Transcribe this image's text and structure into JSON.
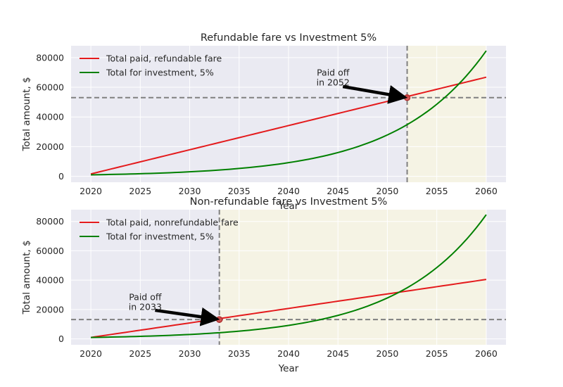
{
  "figure": {
    "colors": {
      "plot_bg": "#eaeaf2",
      "grid": "#ffffff",
      "shade": "#f5f3e4",
      "series_paid": "#e41a1c",
      "series_invest": "#008000",
      "hline": "#808080",
      "marker": "#d84a4a"
    }
  },
  "chart_data": [
    {
      "type": "line",
      "title": "Refundable fare vs Investment 5%",
      "xlabel": "Year",
      "ylabel": "Total amount, $",
      "xlim": [
        2018,
        2062
      ],
      "ylim": [
        -4000,
        88000
      ],
      "xticks": [
        2020,
        2025,
        2030,
        2035,
        2040,
        2045,
        2050,
        2055,
        2060
      ],
      "yticks": [
        0,
        20000,
        40000,
        60000,
        80000
      ],
      "grid": true,
      "legend_position": "top-left",
      "series": [
        {
          "name": "Total paid, refundable fare",
          "color": "#e41a1c",
          "start": [
            2020,
            1600
          ],
          "end": [
            2060,
            66800
          ],
          "curve": "linear"
        },
        {
          "name": "Total for investment, 5%",
          "color": "#008000",
          "start": [
            2020,
            1000
          ],
          "end": [
            2060,
            84600
          ],
          "curve": "compound"
        }
      ],
      "breakeven": {
        "x": 2052,
        "y": 53000
      },
      "shaded_region": [
        2052,
        2060
      ],
      "annotation": {
        "lines": [
          "Paid off",
          "in 2052"
        ],
        "text_at": [
          2044.5,
          63500
        ],
        "tail_at": [
          2045.5,
          60500
        ],
        "points_to": [
          2052,
          53000
        ]
      }
    },
    {
      "type": "line",
      "title": "Non-refundable fare vs Investment 5%",
      "xlabel": "Year",
      "ylabel": "Total amount, $",
      "xlim": [
        2018,
        2062
      ],
      "ylim": [
        -4000,
        88000
      ],
      "xticks": [
        2020,
        2025,
        2030,
        2035,
        2040,
        2045,
        2050,
        2055,
        2060
      ],
      "yticks": [
        0,
        20000,
        40000,
        60000,
        80000
      ],
      "grid": true,
      "legend_position": "top-left",
      "series": [
        {
          "name": "Total paid, nonrefundable fare",
          "color": "#e41a1c",
          "start": [
            2020,
            1000
          ],
          "end": [
            2060,
            40500
          ],
          "curve": "linear"
        },
        {
          "name": "Total for investment, 5%",
          "color": "#008000",
          "start": [
            2020,
            1000
          ],
          "end": [
            2060,
            84600
          ],
          "curve": "compound"
        }
      ],
      "breakeven": {
        "x": 2033,
        "y": 13200
      },
      "shaded_region": [
        2033,
        2060
      ],
      "annotation": {
        "lines": [
          "Paid off",
          "in 2033"
        ],
        "text_at": [
          2025.5,
          22000
        ],
        "tail_at": [
          2026.5,
          19500
        ],
        "points_to": [
          2033,
          13200
        ]
      }
    }
  ]
}
